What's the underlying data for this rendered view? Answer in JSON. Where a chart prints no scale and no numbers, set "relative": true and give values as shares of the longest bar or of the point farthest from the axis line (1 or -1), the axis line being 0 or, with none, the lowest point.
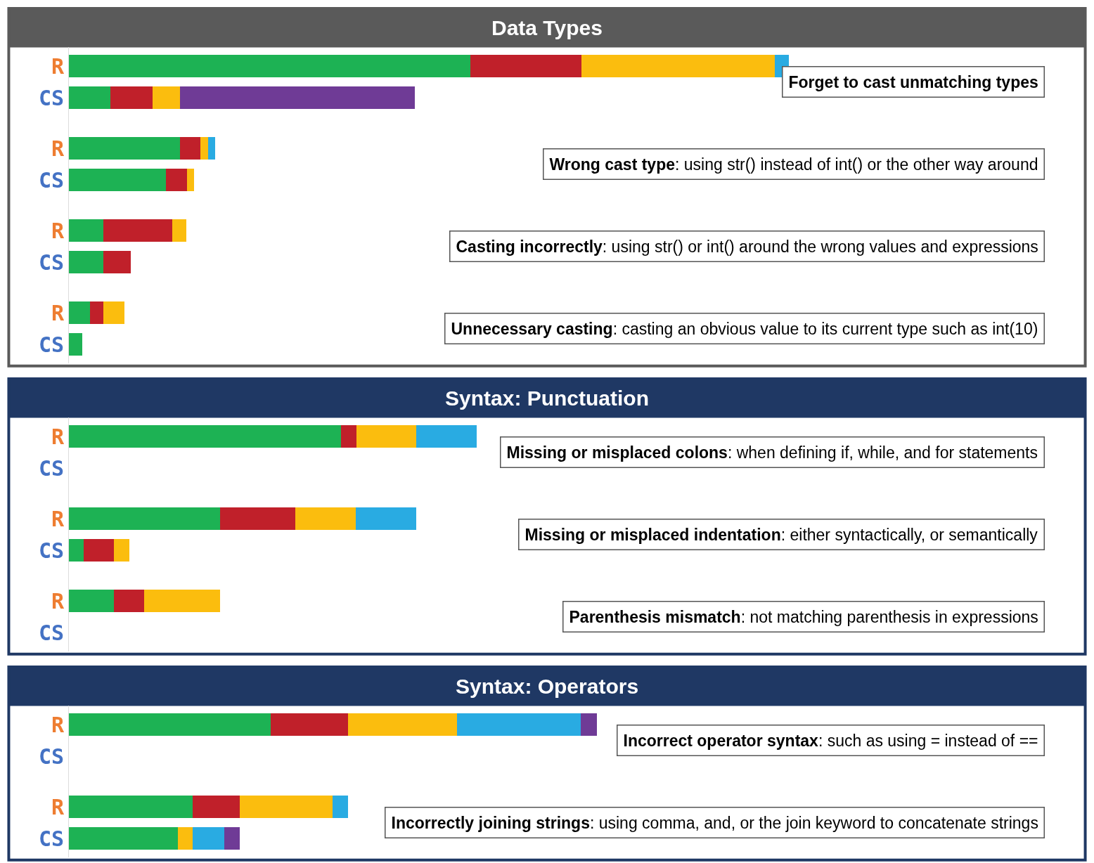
{
  "chart_data": [
    {
      "type": "bar",
      "orientation": "horizontal",
      "stacked": true,
      "relative": true,
      "title": "Data Types",
      "categories": [
        "R",
        "CS",
        "R",
        "CS",
        "R",
        "CS",
        "R",
        "CS"
      ],
      "series": [
        {
          "color": "#1db254",
          "values": [
            0.558,
            0.058,
            0.154,
            0.135,
            0.048,
            0.048,
            0.029,
            0.019
          ]
        },
        {
          "color": "#c0202a",
          "values": [
            0.154,
            0.058,
            0.029,
            0.029,
            0.096,
            0.038,
            0.019,
            null
          ]
        },
        {
          "color": "#fbbd0e",
          "values": [
            0.269,
            0.038,
            0.01,
            0.01,
            0.019,
            null,
            0.029,
            null
          ]
        },
        {
          "color": "#29abe2",
          "values": [
            0.019,
            null,
            0.01,
            null,
            null,
            null,
            null,
            null
          ]
        },
        {
          "color": "#6f3b96",
          "values": [
            null,
            0.327,
            null,
            null,
            null,
            null,
            null,
            null
          ]
        }
      ],
      "annotations": [
        "Forget to cast unmatching types",
        "Wrong cast type: using str() instead of int() or the other way around",
        "Casting incorrectly: using str() or int() around the wrong values and expressions",
        "Unnecessary casting: casting an obvious value to its current type such as int(10)"
      ]
    },
    {
      "type": "bar",
      "orientation": "horizontal",
      "stacked": true,
      "relative": true,
      "title": "Syntax: Punctuation",
      "categories": [
        "R",
        "CS",
        "R",
        "CS",
        "R",
        "CS"
      ],
      "series": [
        {
          "color": "#1db254",
          "values": [
            0.667,
            null,
            0.37,
            0.037,
            0.111,
            null
          ]
        },
        {
          "color": "#c0202a",
          "values": [
            0.037,
            null,
            0.185,
            0.074,
            0.074,
            null
          ]
        },
        {
          "color": "#fbbd0e",
          "values": [
            0.148,
            null,
            0.148,
            0.037,
            0.185,
            null
          ]
        },
        {
          "color": "#29abe2",
          "values": [
            0.148,
            null,
            0.148,
            null,
            null,
            null
          ]
        }
      ],
      "annotations": [
        "Missing or misplaced colons: when defining if, while, and for statements",
        "Missing or misplaced indentation: either syntactically, or semantically",
        "Parenthesis mismatch: not matching parenthesis in expressions"
      ]
    },
    {
      "type": "bar",
      "orientation": "horizontal",
      "stacked": true,
      "relative": true,
      "title": "Syntax: Operators",
      "categories": [
        "R",
        "CS",
        "R",
        "CS"
      ],
      "series": [
        {
          "color": "#1db254",
          "values": [
            0.382,
            null,
            0.235,
            0.206
          ]
        },
        {
          "color": "#c0202a",
          "values": [
            0.147,
            null,
            0.088,
            null
          ]
        },
        {
          "color": "#fbbd0e",
          "values": [
            0.206,
            null,
            0.176,
            0.029
          ]
        },
        {
          "color": "#29abe2",
          "values": [
            0.235,
            null,
            0.029,
            0.059
          ]
        },
        {
          "color": "#6f3b96",
          "values": [
            0.03,
            null,
            null,
            0.029
          ]
        }
      ],
      "annotations": [
        "Incorrect operator syntax: such as using = instead of ==",
        "Incorrectly joining strings: using comma, and, or the join keyword to concatenate strings"
      ]
    }
  ]
}
